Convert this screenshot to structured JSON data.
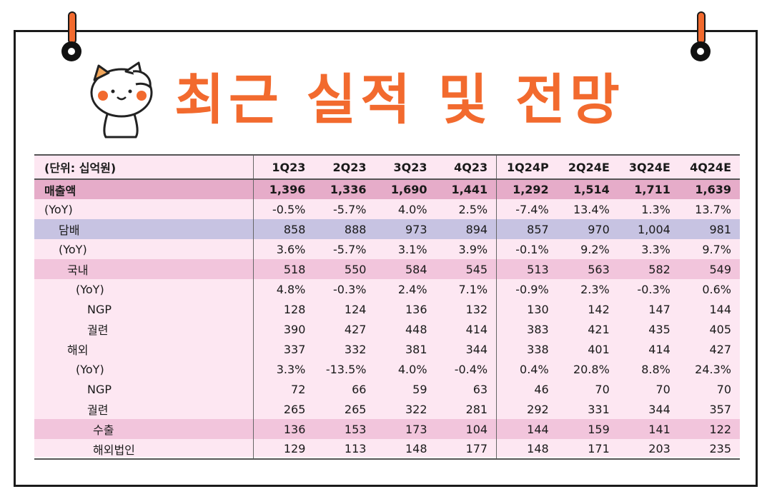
{
  "title": "최근 실적 및 전망",
  "table": {
    "unit_label": "(단위: 십억원)",
    "columns": [
      "1Q23",
      "2Q23",
      "3Q23",
      "4Q23",
      "1Q24P",
      "2Q24E",
      "3Q24E",
      "4Q24E"
    ],
    "rows": [
      {
        "label": "매출액",
        "values": [
          "1,396",
          "1,336",
          "1,690",
          "1,441",
          "1,292",
          "1,514",
          "1,711",
          "1,639"
        ]
      },
      {
        "label": "(YoY)",
        "values": [
          "-0.5%",
          "-5.7%",
          "4.0%",
          "2.5%",
          "-7.4%",
          "13.4%",
          "1.3%",
          "13.7%"
        ]
      },
      {
        "label": "담배",
        "values": [
          "858",
          "888",
          "973",
          "894",
          "857",
          "970",
          "1,004",
          "981"
        ]
      },
      {
        "label": "(YoY)",
        "values": [
          "3.6%",
          "-5.7%",
          "3.1%",
          "3.9%",
          "-0.1%",
          "9.2%",
          "3.3%",
          "9.7%"
        ]
      },
      {
        "label": "국내",
        "values": [
          "518",
          "550",
          "584",
          "545",
          "513",
          "563",
          "582",
          "549"
        ]
      },
      {
        "label": "(YoY)",
        "values": [
          "4.8%",
          "-0.3%",
          "2.4%",
          "7.1%",
          "-0.9%",
          "2.3%",
          "-0.3%",
          "0.6%"
        ]
      },
      {
        "label": "NGP",
        "values": [
          "128",
          "124",
          "136",
          "132",
          "130",
          "142",
          "147",
          "144"
        ]
      },
      {
        "label": "궐련",
        "values": [
          "390",
          "427",
          "448",
          "414",
          "383",
          "421",
          "435",
          "405"
        ]
      },
      {
        "label": "해외",
        "values": [
          "337",
          "332",
          "381",
          "344",
          "338",
          "401",
          "414",
          "427"
        ]
      },
      {
        "label": "(YoY)",
        "values": [
          "3.3%",
          "-13.5%",
          "4.0%",
          "-0.4%",
          "0.4%",
          "20.8%",
          "8.8%",
          "24.3%"
        ]
      },
      {
        "label": "NGP",
        "values": [
          "72",
          "66",
          "59",
          "63",
          "46",
          "70",
          "70",
          "70"
        ]
      },
      {
        "label": "궐련",
        "values": [
          "265",
          "265",
          "322",
          "281",
          "292",
          "331",
          "344",
          "357"
        ]
      },
      {
        "label": "수출",
        "values": [
          "136",
          "153",
          "173",
          "104",
          "144",
          "159",
          "141",
          "122"
        ]
      },
      {
        "label": "해외법인",
        "values": [
          "129",
          "113",
          "148",
          "177",
          "148",
          "171",
          "203",
          "235"
        ]
      }
    ]
  }
}
